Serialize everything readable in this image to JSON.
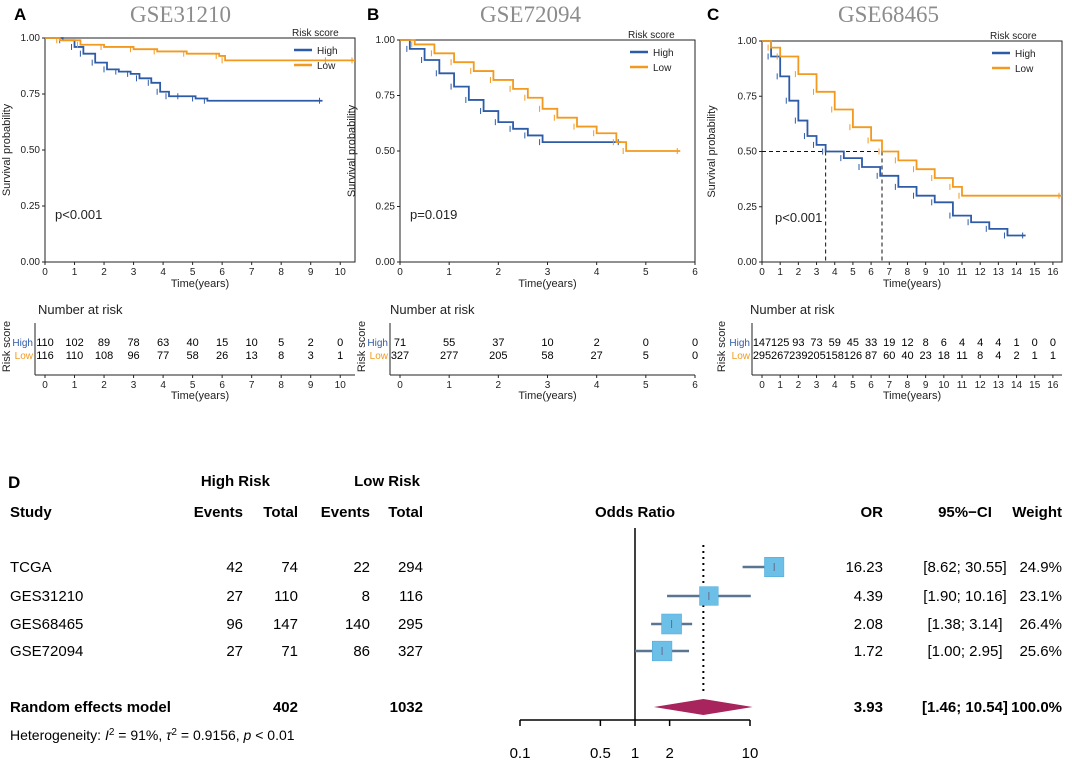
{
  "panels": [
    {
      "letter": "A",
      "title": "GSE31210",
      "chart_data": {
        "type": "line",
        "title": "GSE31210",
        "xlabel": "Time(years)",
        "ylabel": "Survival probability",
        "xlim": [
          0,
          10.5
        ],
        "ylim": [
          0,
          1
        ],
        "xticks": [
          0,
          1,
          2,
          3,
          4,
          5,
          6,
          7,
          8,
          9,
          10
        ],
        "yticks": [
          "0.00",
          "0.25",
          "0.50",
          "0.75",
          "1.00"
        ],
        "legend_title": "Risk score",
        "pvalue": "p<0.001",
        "series": [
          {
            "name": "High",
            "color": "#2e5ba8",
            "points": [
              [
                0,
                1
              ],
              [
                0.6,
                0.99
              ],
              [
                1.0,
                0.96
              ],
              [
                1.3,
                0.93
              ],
              [
                1.7,
                0.89
              ],
              [
                2.1,
                0.86
              ],
              [
                2.5,
                0.85
              ],
              [
                2.9,
                0.84
              ],
              [
                3.2,
                0.82
              ],
              [
                3.6,
                0.8
              ],
              [
                3.9,
                0.76
              ],
              [
                4.2,
                0.74
              ],
              [
                4.6,
                0.74
              ],
              [
                5.1,
                0.73
              ],
              [
                5.5,
                0.72
              ],
              [
                9.4,
                0.72
              ]
            ]
          },
          {
            "name": "Low",
            "color": "#f29a1f",
            "points": [
              [
                0,
                1
              ],
              [
                0.5,
                0.99
              ],
              [
                1.2,
                0.97
              ],
              [
                2.0,
                0.96
              ],
              [
                3.0,
                0.95
              ],
              [
                3.8,
                0.94
              ],
              [
                4.8,
                0.93
              ],
              [
                5.9,
                0.92
              ],
              [
                6.1,
                0.9
              ],
              [
                9.6,
                0.9
              ],
              [
                10.5,
                0.9
              ]
            ]
          }
        ],
        "risk_table": {
          "title": "Number at risk",
          "ylabel": "Risk score",
          "xlabel": "Time(years)",
          "times": [
            0,
            1,
            2,
            3,
            4,
            5,
            6,
            7,
            8,
            9,
            10
          ],
          "rows": [
            {
              "name": "High",
              "color": "#2e5ba8",
              "values": [
                "110",
                "102",
                "89",
                "78",
                "63",
                "40",
                "15",
                "10",
                "5",
                "2",
                "0"
              ]
            },
            {
              "name": "Low",
              "color": "#f29a1f",
              "values": [
                "116",
                "110",
                "108",
                "96",
                "77",
                "58",
                "26",
                "13",
                "8",
                "3",
                "1"
              ]
            }
          ]
        }
      }
    },
    {
      "letter": "B",
      "title": "GSE72094",
      "chart_data": {
        "type": "line",
        "title": "GSE72094",
        "xlabel": "Time(years)",
        "ylabel": "Survival probability",
        "xlim": [
          0,
          6
        ],
        "ylim": [
          0,
          1
        ],
        "xticks": [
          0,
          1,
          2,
          3,
          4,
          5,
          6
        ],
        "yticks": [
          "0.00",
          "0.25",
          "0.50",
          "0.75",
          "1.00"
        ],
        "legend_title": "Risk score",
        "pvalue": "p=0.019",
        "series": [
          {
            "name": "High",
            "color": "#2e5ba8",
            "points": [
              [
                0,
                1
              ],
              [
                0.2,
                0.96
              ],
              [
                0.5,
                0.91
              ],
              [
                0.8,
                0.85
              ],
              [
                1.1,
                0.79
              ],
              [
                1.4,
                0.73
              ],
              [
                1.7,
                0.68
              ],
              [
                2.0,
                0.63
              ],
              [
                2.3,
                0.6
              ],
              [
                2.6,
                0.57
              ],
              [
                2.9,
                0.54
              ],
              [
                4.5,
                0.54
              ]
            ]
          },
          {
            "name": "Low",
            "color": "#f29a1f",
            "points": [
              [
                0,
                1
              ],
              [
                0.3,
                0.98
              ],
              [
                0.7,
                0.94
              ],
              [
                1.1,
                0.9
              ],
              [
                1.5,
                0.86
              ],
              [
                1.9,
                0.82
              ],
              [
                2.3,
                0.78
              ],
              [
                2.6,
                0.74
              ],
              [
                2.9,
                0.69
              ],
              [
                3.2,
                0.65
              ],
              [
                3.6,
                0.61
              ],
              [
                4.0,
                0.58
              ],
              [
                4.4,
                0.54
              ],
              [
                4.6,
                0.5
              ],
              [
                5.7,
                0.5
              ]
            ]
          }
        ],
        "risk_table": {
          "title": "Number at risk",
          "ylabel": "Risk score",
          "xlabel": "Time(years)",
          "times": [
            0,
            1,
            2,
            3,
            4,
            5,
            6
          ],
          "rows": [
            {
              "name": "High",
              "color": "#2e5ba8",
              "values": [
                "71",
                "55",
                "37",
                "10",
                "2",
                "0",
                "0"
              ]
            },
            {
              "name": "Low",
              "color": "#f29a1f",
              "values": [
                "327",
                "277",
                "205",
                "58",
                "27",
                "5",
                "0"
              ]
            }
          ]
        }
      }
    },
    {
      "letter": "C",
      "title": "GSE68465",
      "chart_data": {
        "type": "line",
        "title": "GSE68465",
        "xlabel": "Time(years)",
        "ylabel": "Survival probability",
        "xlim": [
          0,
          16.5
        ],
        "ylim": [
          0,
          1
        ],
        "xticks": [
          0,
          1,
          2,
          3,
          4,
          5,
          6,
          7,
          8,
          9,
          10,
          11,
          12,
          13,
          14,
          15,
          16
        ],
        "yticks": [
          "0.00",
          "0.25",
          "0.50",
          "0.75",
          "1.00"
        ],
        "legend_title": "Risk score",
        "pvalue": "p<0.001",
        "median_lines": [
          3.5,
          6.6
        ],
        "series": [
          {
            "name": "High",
            "color": "#2e5ba8",
            "points": [
              [
                0,
                1
              ],
              [
                0.5,
                0.93
              ],
              [
                1.0,
                0.84
              ],
              [
                1.5,
                0.73
              ],
              [
                2.0,
                0.64
              ],
              [
                2.5,
                0.57
              ],
              [
                3.0,
                0.53
              ],
              [
                3.5,
                0.5
              ],
              [
                4.5,
                0.47
              ],
              [
                5.5,
                0.43
              ],
              [
                6.5,
                0.39
              ],
              [
                7.5,
                0.34
              ],
              [
                8.5,
                0.3
              ],
              [
                9.5,
                0.27
              ],
              [
                10.5,
                0.21
              ],
              [
                11.5,
                0.18
              ],
              [
                12.5,
                0.15
              ],
              [
                13.5,
                0.12
              ],
              [
                14.5,
                0.12
              ]
            ]
          },
          {
            "name": "Low",
            "color": "#f29a1f",
            "points": [
              [
                0,
                1
              ],
              [
                0.5,
                0.97
              ],
              [
                1.0,
                0.93
              ],
              [
                2.0,
                0.85
              ],
              [
                3.0,
                0.77
              ],
              [
                4.0,
                0.69
              ],
              [
                5.0,
                0.61
              ],
              [
                6.0,
                0.55
              ],
              [
                6.6,
                0.5
              ],
              [
                7.5,
                0.46
              ],
              [
                8.5,
                0.42
              ],
              [
                9.5,
                0.38
              ],
              [
                10.5,
                0.34
              ],
              [
                11.0,
                0.3
              ],
              [
                16.5,
                0.3
              ]
            ]
          }
        ],
        "risk_table": {
          "title": "Number at risk",
          "ylabel": "Risk score",
          "xlabel": "Time(years)",
          "times": [
            0,
            1,
            2,
            3,
            4,
            5,
            6,
            7,
            8,
            9,
            10,
            11,
            12,
            13,
            14,
            15,
            16
          ],
          "rows": [
            {
              "name": "High",
              "color": "#2e5ba8",
              "values": [
                "147",
                "125",
                "93",
                "73",
                "59",
                "45",
                "33",
                "19",
                "12",
                "8",
                "6",
                "4",
                "4",
                "4",
                "1",
                "0",
                "0"
              ]
            },
            {
              "name": "Low",
              "color": "#f29a1f",
              "values": [
                "295",
                "267",
                "239",
                "205",
                "158",
                "126",
                "87",
                "60",
                "40",
                "23",
                "18",
                "11",
                "8",
                "4",
                "2",
                "1",
                "1"
              ]
            }
          ]
        }
      }
    }
  ],
  "forest": {
    "letter": "D",
    "headers": {
      "high_risk": "High Risk",
      "low_risk": "Low Risk",
      "study": "Study",
      "events": "Events",
      "total": "Total",
      "odds_ratio": "Odds Ratio",
      "or": "OR",
      "ci": "95%−CI",
      "weight": "Weight"
    },
    "heterogeneity": {
      "prefix": "Heterogeneity: ",
      "i2_symbol": "I",
      "i2_sup": "2",
      "i2_value": " = 91%, ",
      "tau_symbol": "τ",
      "tau_sup": "2",
      "tau_value": " = 0.9156, ",
      "p_symbol": "p",
      "p_value": " < 0.01"
    },
    "chart_data": {
      "type": "forest",
      "xscale": "log",
      "xlabel": "Odds Ratio",
      "xticks": [
        "0.1",
        "0.5",
        "1",
        "2",
        "10"
      ],
      "xtick_values": [
        0.1,
        0.5,
        1,
        2,
        10
      ],
      "null_value": 1,
      "pooled_or": 3.93,
      "studies": [
        {
          "study": "TCGA",
          "high_events": "42",
          "high_total": "74",
          "low_events": "22",
          "low_total": "294",
          "or": 16.23,
          "or_label": "16.23",
          "lo": 8.62,
          "hi": 30.55,
          "ci_label": "[8.62; 30.55]",
          "weight": 24.9,
          "weight_label": "24.9%"
        },
        {
          "study": "GES31210",
          "high_events": "27",
          "high_total": "110",
          "low_events": "8",
          "low_total": "116",
          "or": 4.39,
          "or_label": "4.39",
          "lo": 1.9,
          "hi": 10.16,
          "ci_label": "[1.90; 10.16]",
          "weight": 23.1,
          "weight_label": "23.1%"
        },
        {
          "study": "GES68465",
          "high_events": "96",
          "high_total": "147",
          "low_events": "140",
          "low_total": "295",
          "or": 2.08,
          "or_label": "2.08",
          "lo": 1.38,
          "hi": 3.14,
          "ci_label": "[1.38; 3.14]",
          "weight": 26.4,
          "weight_label": "26.4%"
        },
        {
          "study": "GSE72094",
          "high_events": "27",
          "high_total": "71",
          "low_events": "86",
          "low_total": "327",
          "or": 1.72,
          "or_label": "1.72",
          "lo": 1.0,
          "hi": 2.95,
          "ci_label": "[1.00; 2.95]",
          "weight": 25.6,
          "weight_label": "25.6%"
        }
      ],
      "pooled": {
        "study": "Random effects model",
        "high_total": "402",
        "low_total": "1032",
        "or": 3.93,
        "or_label": "3.93",
        "lo": 1.46,
        "hi": 10.54,
        "ci_label": "[1.46; 10.54]",
        "weight_label": "100.0%"
      }
    }
  },
  "colors": {
    "high": "#2e5ba8",
    "low": "#f29a1f",
    "box": "#6cc0e8",
    "diamond": "#a8245c",
    "whisker": "#5a7590"
  }
}
